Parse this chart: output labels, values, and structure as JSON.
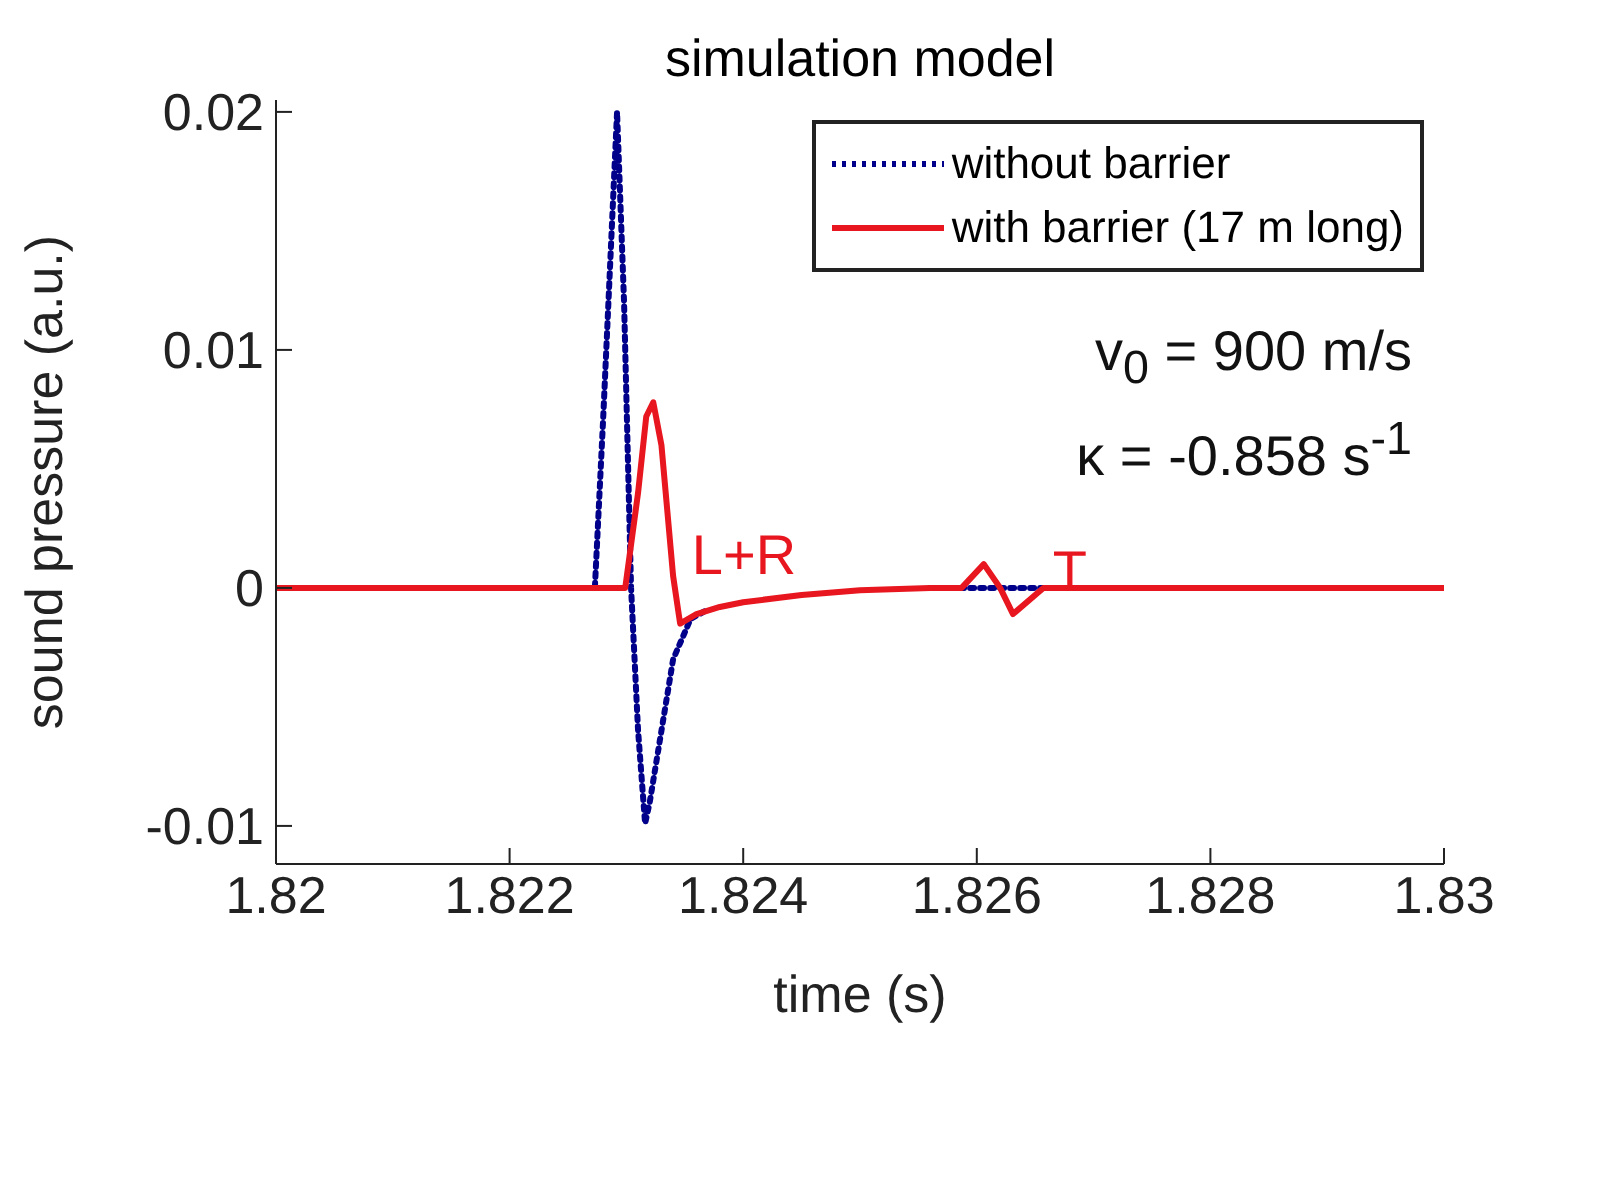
{
  "chart_data": {
    "type": "line",
    "title": "simulation model",
    "xlabel": "time (s)",
    "ylabel": "sound pressure (a.u.)",
    "xlim": [
      1.82,
      1.83
    ],
    "xticks": [
      1.82,
      1.822,
      1.824,
      1.826,
      1.828,
      1.83
    ],
    "ylim": [
      -0.0116,
      0.0205
    ],
    "yticks": [
      -0.01,
      0,
      0.01,
      0.02
    ],
    "grid": false,
    "legend": "top right",
    "marker": "none",
    "series": [
      {
        "name": "without barrier",
        "color": "#00008b",
        "line_style": "dotted",
        "x": [
          1.82,
          1.82273,
          1.8228,
          1.82292,
          1.82298,
          1.82304,
          1.8231,
          1.82316,
          1.8232,
          1.8233,
          1.8234,
          1.82355,
          1.8237,
          1.824,
          1.8245,
          1.825,
          1.8256,
          1.83
        ],
        "values": [
          0,
          0,
          0.007,
          0.02,
          0.012,
          0,
          -0.006,
          -0.0099,
          -0.009,
          -0.006,
          -0.003,
          -0.0013,
          -0.0009,
          null,
          null,
          null,
          0,
          0
        ]
      },
      {
        "name": "with barrier (17 m long)",
        "color": "#e8161e",
        "line_style": "solid",
        "x": [
          1.82,
          1.82299,
          1.8231,
          1.82317,
          1.82323,
          1.8233,
          1.8234,
          1.82346,
          1.8236,
          1.8238,
          1.824,
          1.8245,
          1.825,
          1.8256,
          1.82587,
          1.82606,
          1.8262,
          1.82631,
          1.82657,
          1.83
        ],
        "values": [
          0,
          0,
          0.004,
          0.0072,
          0.0078,
          0.006,
          0.0005,
          -0.0015,
          -0.0011,
          -0.0008,
          -0.0006,
          -0.0003,
          -0.0001,
          0,
          0,
          0.001,
          0,
          -0.0011,
          0,
          0
        ]
      }
    ],
    "annotations": [
      "L+R",
      "T",
      "v$_{0}$ = 900 m/s",
      "κ = -0.858 s$^{-1}$"
    ]
  }
}
